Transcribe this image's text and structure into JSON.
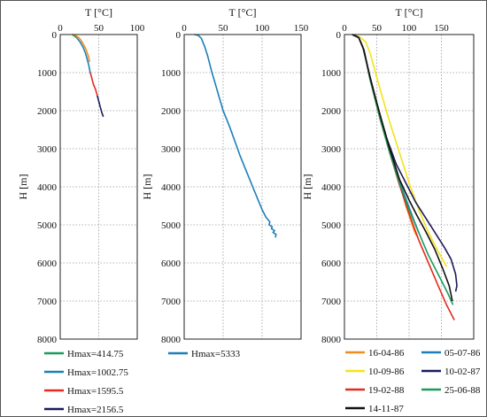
{
  "colors": {
    "orange": "#f28c1f",
    "blue": "#1b7fb8",
    "red": "#e32b1e",
    "navy": "#1c1a5a",
    "green": "#1b9a5b",
    "yellow": "#f5e21a",
    "black": "#111111"
  },
  "chart_data": [
    {
      "type": "line",
      "xlabel": "T [°C]",
      "ylabel": "H [m]",
      "xlim": [
        0,
        100
      ],
      "ylim": [
        0,
        8000
      ],
      "y_inverted": true,
      "x_ticks": [
        "0",
        "50",
        "100"
      ],
      "y_ticks": [
        "0",
        "1000",
        "2000",
        "3000",
        "4000",
        "5000",
        "6000",
        "7000",
        "8000"
      ],
      "grid": true,
      "legend_position": "below",
      "series": [
        {
          "name": "Hmax=414.75",
          "color": "#1b9a5b",
          "points": [
            [
              15.5,
              0
            ],
            [
              17,
              20
            ],
            [
              20,
              60
            ],
            [
              22,
              100
            ]
          ]
        },
        {
          "name": "Hmax=1002.75",
          "color": "#1b7fb8",
          "points": [
            [
              22,
              100
            ],
            [
              26,
              200
            ],
            [
              30,
              350
            ],
            [
              33,
              500
            ],
            [
              35,
              650
            ],
            [
              37,
              800
            ],
            [
              39,
              1000
            ]
          ]
        },
        {
          "name": "Hmax=1595.5",
          "color": "#e32b1e",
          "points": [
            [
              39,
              1000
            ],
            [
              41,
              1150
            ],
            [
              43,
              1300
            ],
            [
              46,
              1450
            ],
            [
              48,
              1600
            ]
          ]
        },
        {
          "name": "Hmax=2156.5",
          "color": "#1c1a5a",
          "points": [
            [
              48,
              1600
            ],
            [
              50,
              1750
            ],
            [
              52,
              1900
            ],
            [
              54,
              2050
            ],
            [
              56,
              2160
            ]
          ]
        },
        {
          "name": "",
          "color": "#f28c1f",
          "points": [
            [
              15.5,
              0
            ],
            [
              18,
              10
            ],
            [
              21,
              40
            ],
            [
              24,
              80
            ],
            [
              27,
              150
            ],
            [
              30,
              250
            ],
            [
              33,
              370
            ],
            [
              35,
              480
            ],
            [
              37,
              600
            ],
            [
              38,
              720
            ]
          ]
        }
      ]
    },
    {
      "type": "line",
      "xlabel": "T [°C]",
      "ylabel": "H [m]",
      "xlim": [
        0,
        150
      ],
      "ylim": [
        0,
        8000
      ],
      "y_inverted": true,
      "x_ticks": [
        "0",
        "50",
        "100",
        "150"
      ],
      "y_ticks": [
        "0",
        "1000",
        "2000",
        "3000",
        "4000",
        "5000",
        "6000",
        "7000",
        "8000"
      ],
      "grid": true,
      "legend_position": "below",
      "series": [
        {
          "name": "Hmax=5333",
          "color": "#1b7fb8",
          "points": [
            [
              13,
              0
            ],
            [
              18,
              20
            ],
            [
              22,
              100
            ],
            [
              26,
              300
            ],
            [
              30,
              550
            ],
            [
              35,
              950
            ],
            [
              40,
              1300
            ],
            [
              45,
              1650
            ],
            [
              50,
              2000
            ],
            [
              58,
              2400
            ],
            [
              65,
              2800
            ],
            [
              72,
              3200
            ],
            [
              80,
              3600
            ],
            [
              88,
              4000
            ],
            [
              94,
              4300
            ],
            [
              100,
              4600
            ],
            [
              105,
              4800
            ],
            [
              110,
              4920
            ],
            [
              109,
              5000
            ],
            [
              113,
              5050
            ],
            [
              112,
              5100
            ],
            [
              116,
              5150
            ],
            [
              114,
              5200
            ],
            [
              118,
              5250
            ],
            [
              117,
              5333
            ]
          ]
        }
      ]
    },
    {
      "type": "line",
      "xlabel": "T [°C]",
      "ylabel": "H [m]",
      "xlim": [
        0,
        200
      ],
      "ylim": [
        0,
        8000
      ],
      "y_inverted": true,
      "x_ticks": [
        "0",
        "50",
        "100",
        "150"
      ],
      "y_ticks": [
        "0",
        "1000",
        "2000",
        "3000",
        "4000",
        "5000",
        "6000",
        "7000",
        "8000"
      ],
      "grid": true,
      "legend_position": "below",
      "series": [
        {
          "name": "16-04-86",
          "color": "#f28c1f",
          "points": [
            [
              12,
              0
            ],
            [
              22,
              80
            ],
            [
              30,
              400
            ],
            [
              40,
              1200
            ],
            [
              55,
              2200
            ],
            [
              70,
              3100
            ],
            [
              85,
              3900
            ],
            [
              95,
              4500
            ],
            [
              103,
              4900
            ],
            [
              108,
              5150
            ],
            [
              112,
              5300
            ]
          ]
        },
        {
          "name": "05-07-86",
          "color": "#1b7fb8",
          "points": [
            [
              12,
              0
            ],
            [
              22,
              80
            ],
            [
              30,
              400
            ],
            [
              40,
              1200
            ],
            [
              55,
              2150
            ],
            [
              70,
              3050
            ],
            [
              85,
              3850
            ],
            [
              98,
              4450
            ],
            [
              108,
              4900
            ],
            [
              115,
              5200
            ]
          ]
        },
        {
          "name": "10-09-86",
          "color": "#f5e21a",
          "points": [
            [
              14,
              0
            ],
            [
              25,
              80
            ],
            [
              33,
              200
            ],
            [
              40,
              500
            ],
            [
              48,
              1000
            ],
            [
              58,
              1600
            ],
            [
              70,
              2300
            ],
            [
              85,
              3100
            ],
            [
              100,
              3900
            ],
            [
              115,
              4600
            ],
            [
              130,
              5200
            ],
            [
              145,
              5700
            ],
            [
              155,
              6000
            ],
            [
              158,
              6100
            ]
          ]
        },
        {
          "name": "10-02-87",
          "color": "#1c1a5a",
          "points": [
            [
              12,
              0
            ],
            [
              22,
              80
            ],
            [
              28,
              300
            ],
            [
              38,
              1000
            ],
            [
              50,
              1800
            ],
            [
              65,
              2700
            ],
            [
              80,
              3400
            ],
            [
              95,
              3900
            ],
            [
              110,
              4400
            ],
            [
              125,
              4800
            ],
            [
              140,
              5200
            ],
            [
              155,
              5600
            ],
            [
              165,
              5900
            ],
            [
              172,
              6300
            ],
            [
              174,
              6600
            ],
            [
              172,
              6750
            ]
          ]
        },
        {
          "name": "19-02-88",
          "color": "#e32b1e",
          "points": [
            [
              12,
              0
            ],
            [
              22,
              80
            ],
            [
              30,
              400
            ],
            [
              40,
              1200
            ],
            [
              55,
              2200
            ],
            [
              70,
              3100
            ],
            [
              85,
              3950
            ],
            [
              100,
              4700
            ],
            [
              115,
              5400
            ],
            [
              130,
              6000
            ],
            [
              145,
              6600
            ],
            [
              158,
              7100
            ],
            [
              170,
              7500
            ]
          ]
        },
        {
          "name": "25-06-88",
          "color": "#1b9a5b",
          "points": [
            [
              12,
              0
            ],
            [
              22,
              80
            ],
            [
              30,
              400
            ],
            [
              40,
              1200
            ],
            [
              55,
              2200
            ],
            [
              70,
              3100
            ],
            [
              85,
              3900
            ],
            [
              100,
              4600
            ],
            [
              115,
              5200
            ],
            [
              130,
              5800
            ],
            [
              145,
              6300
            ],
            [
              160,
              6800
            ],
            [
              168,
              7100
            ]
          ]
        },
        {
          "name": "14-11-87",
          "color": "#111111",
          "points": [
            [
              12,
              0
            ],
            [
              22,
              80
            ],
            [
              30,
              400
            ],
            [
              40,
              1150
            ],
            [
              55,
              2100
            ],
            [
              70,
              3000
            ],
            [
              85,
              3800
            ],
            [
              100,
              4350
            ],
            [
              112,
              4750
            ],
            [
              125,
              5150
            ],
            [
              140,
              5650
            ],
            [
              152,
              6150
            ],
            [
              162,
              6600
            ],
            [
              167,
              7000
            ]
          ]
        }
      ]
    }
  ]
}
